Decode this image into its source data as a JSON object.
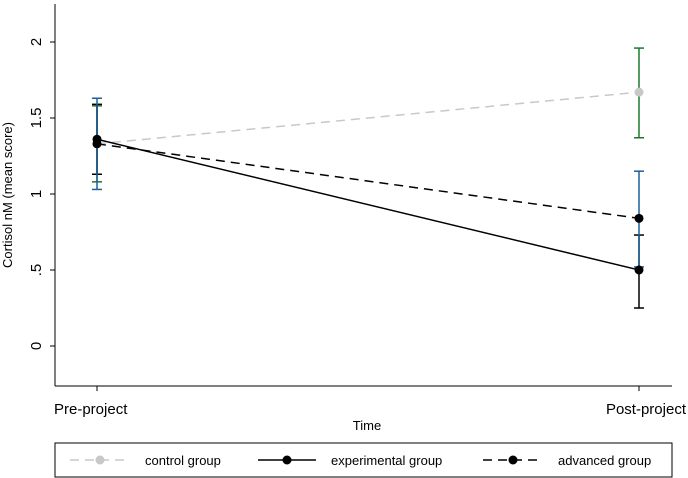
{
  "chart_data": {
    "type": "line",
    "categories": [
      "Pre-project",
      "Post-project"
    ],
    "xlabel": "Time",
    "ylabel": "Cortisol nM (mean score)",
    "ylim": [
      -0.25,
      2.25
    ],
    "yticks": [
      0,
      0.5,
      1,
      1.5,
      2
    ],
    "ytick_labels": [
      "0",
      ".5",
      "1",
      "1.5",
      "2"
    ],
    "grid": false,
    "legend_position": "bottom",
    "series": [
      {
        "name": "control group",
        "values": [
          1.33,
          1.67
        ],
        "ci_low": [
          1.08,
          1.37
        ],
        "ci_high": [
          1.58,
          1.96
        ],
        "line_color": "#c8c8c8",
        "marker_color": "#c8c8c8",
        "error_color": "#1a7a2a",
        "line_style": "dashed"
      },
      {
        "name": "experimental group",
        "values": [
          1.36,
          0.5
        ],
        "ci_low": [
          1.13,
          0.25
        ],
        "ci_high": [
          1.59,
          0.73
        ],
        "line_color": "#000000",
        "marker_color": "#000000",
        "error_color": "#000000",
        "line_style": "solid"
      },
      {
        "name": "advanced group",
        "values": [
          1.33,
          0.84
        ],
        "ci_low": [
          1.03,
          0.52
        ],
        "ci_high": [
          1.63,
          1.15
        ],
        "line_color": "#000000",
        "marker_color": "#000000",
        "error_color": "#1f5f9a",
        "line_style": "dashed"
      }
    ]
  }
}
